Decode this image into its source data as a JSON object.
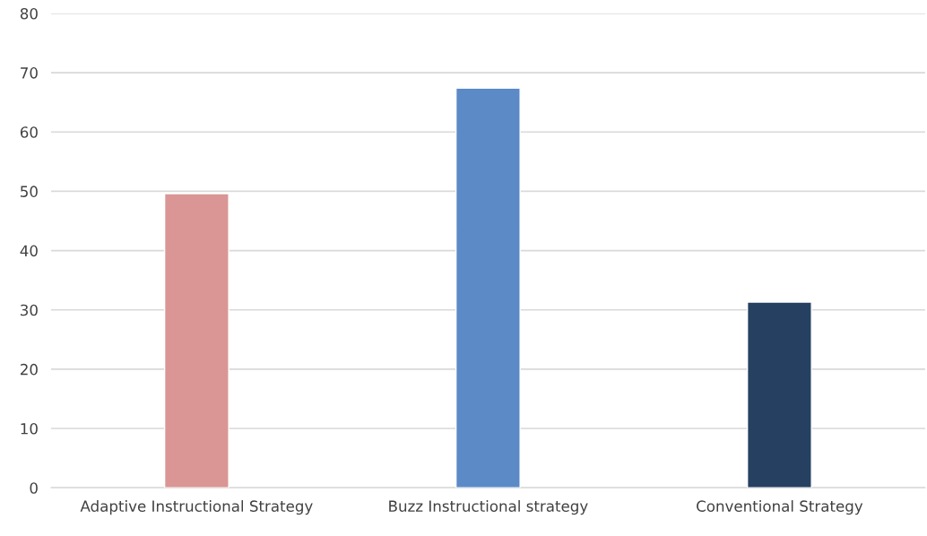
{
  "chart_data": {
    "type": "bar",
    "categories": [
      "Adaptive Instructional Strategy",
      "Buzz Instructional strategy",
      "Conventional Strategy"
    ],
    "values": [
      49.6,
      67.4,
      31.3
    ],
    "colors": [
      "#d99694",
      "#5b8ac6",
      "#254061"
    ],
    "ylim": [
      0,
      80
    ],
    "yticks": [
      0,
      10,
      20,
      30,
      40,
      50,
      60,
      70,
      80
    ],
    "grid": "y"
  }
}
